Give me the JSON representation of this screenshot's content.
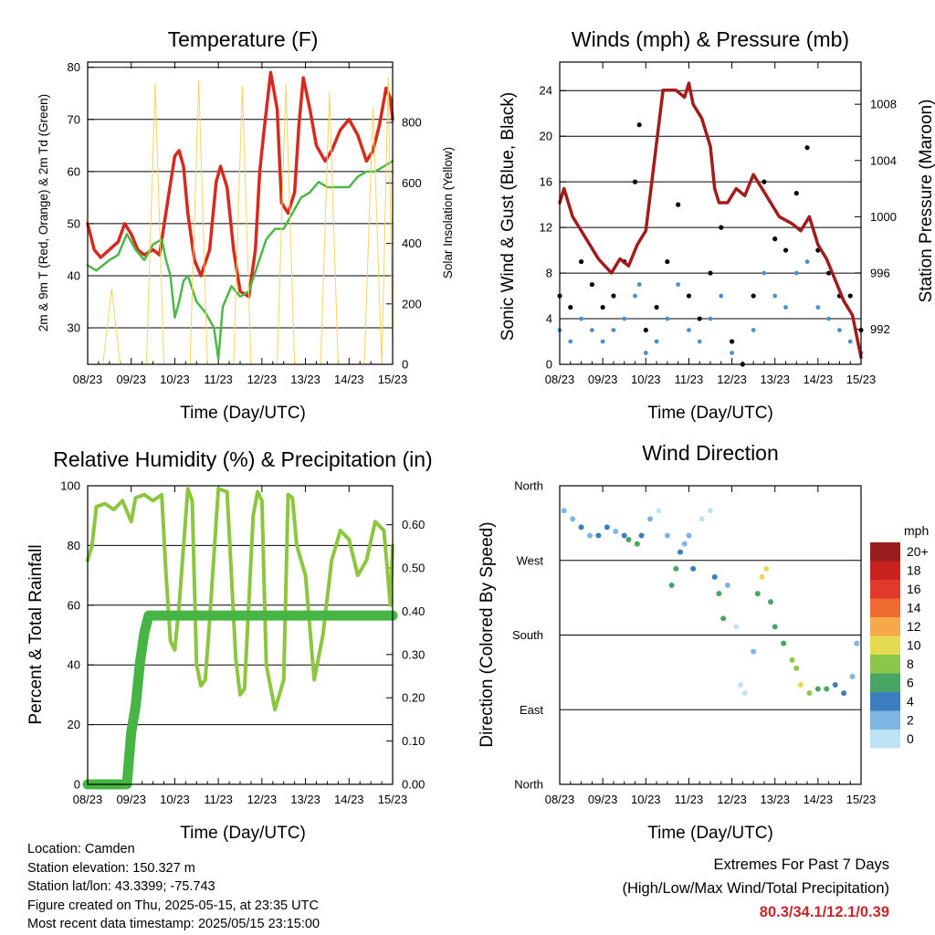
{
  "chart_data": [
    {
      "id": "temperature",
      "type": "line",
      "title": "Temperature (F)",
      "xlabel": "Time (Day/UTC)",
      "ylabel": "2m & 9m T (Red, Orange) & 2m Td (Green)",
      "y2label": "Solar Insolation (Yellow)",
      "x_ticks": [
        "08/23",
        "09/23",
        "10/23",
        "11/23",
        "12/23",
        "13/23",
        "14/23",
        "15/23"
      ],
      "ylim": [
        23,
        81
      ],
      "y_ticks": [
        30,
        40,
        50,
        60,
        70,
        80
      ],
      "y2lim": [
        0,
        1000
      ],
      "y2_ticks": [
        0,
        200,
        400,
        600,
        800
      ],
      "grid_y": [
        30,
        40,
        50,
        60,
        70,
        80
      ],
      "series": [
        {
          "name": "2m T",
          "color": "#d62a1f",
          "x": [
            0,
            0.15,
            0.3,
            0.5,
            0.7,
            0.85,
            1.0,
            1.15,
            1.3,
            1.5,
            1.65,
            1.85,
            2.0,
            2.1,
            2.2,
            2.3,
            2.45,
            2.6,
            2.8,
            2.95,
            3.05,
            3.2,
            3.35,
            3.5,
            3.7,
            3.85,
            3.95,
            4.05,
            4.2,
            4.35,
            4.45,
            4.6,
            4.75,
            4.85,
            4.95,
            5.1,
            5.25,
            5.45,
            5.6,
            5.8,
            6.0,
            6.2,
            6.4,
            6.55,
            6.7,
            6.85,
            6.95,
            7.0
          ],
          "y": [
            50,
            45,
            43.5,
            45,
            46.5,
            50,
            48,
            45,
            44,
            45,
            44,
            55,
            63,
            64,
            61,
            52,
            43,
            40,
            45,
            58,
            61,
            57,
            45,
            37,
            36,
            45,
            60,
            68,
            79,
            72,
            54,
            52,
            56,
            69,
            78,
            72,
            65,
            62,
            64,
            68,
            70,
            67,
            62,
            64,
            69,
            76,
            74,
            70
          ]
        },
        {
          "name": "2m Td",
          "color": "#4cb848",
          "x": [
            0,
            0.2,
            0.5,
            0.7,
            0.9,
            1.1,
            1.3,
            1.5,
            1.7,
            1.8,
            1.9,
            2.0,
            2.1,
            2.2,
            2.3,
            2.5,
            2.7,
            2.9,
            3.0,
            3.1,
            3.3,
            3.5,
            3.7,
            3.9,
            4.1,
            4.3,
            4.5,
            4.7,
            4.9,
            5.1,
            5.3,
            5.5,
            5.8,
            6.0,
            6.2,
            6.4,
            6.6,
            6.8,
            7.0
          ],
          "y": [
            42,
            41,
            43,
            44,
            48,
            45,
            43,
            46,
            47,
            43,
            40,
            32,
            35,
            39,
            40,
            35,
            33,
            30,
            24,
            34,
            38,
            36,
            37,
            42,
            47,
            49,
            49,
            52,
            55,
            56,
            58,
            57,
            57,
            57,
            59,
            60,
            60,
            61,
            62
          ]
        },
        {
          "name": "Solar Insolation",
          "color": "#f5d45a",
          "axis": "y2",
          "x": [
            0,
            0.35,
            0.55,
            0.75,
            0.95,
            1.35,
            1.55,
            1.75,
            1.95,
            2.35,
            2.55,
            2.75,
            2.95,
            3.35,
            3.55,
            3.75,
            3.95,
            4.35,
            4.55,
            4.75,
            4.95,
            5.35,
            5.55,
            5.75,
            5.95,
            6.35,
            6.55,
            6.75,
            6.9,
            7.0
          ],
          "y": [
            0,
            0,
            250,
            0,
            0,
            0,
            930,
            0,
            0,
            0,
            940,
            0,
            0,
            0,
            920,
            0,
            0,
            0,
            930,
            0,
            0,
            0,
            900,
            0,
            0,
            0,
            850,
            0,
            950,
            50
          ]
        }
      ]
    },
    {
      "id": "winds",
      "type": "scatter",
      "title": "Winds (mph) & Pressure (mb)",
      "xlabel": "Time (Day/UTC)",
      "ylabel": "Sonic Wind & Gust (Blue, Black)",
      "y2label": "Station Pressure (Maroon)",
      "x_ticks": [
        "08/23",
        "09/23",
        "10/23",
        "11/23",
        "12/23",
        "13/23",
        "14/23",
        "15/23"
      ],
      "ylim": [
        0,
        26.5
      ],
      "y_ticks": [
        0,
        4,
        8,
        12,
        16,
        20,
        24
      ],
      "y2lim": [
        989.5,
        1011
      ],
      "y2_ticks": [
        992,
        996,
        1000,
        1004,
        1008
      ],
      "series": [
        {
          "name": "Sonic Wind",
          "color": "#4a90cf",
          "x": [
            0,
            0.25,
            0.5,
            0.75,
            1.0,
            1.25,
            1.5,
            1.75,
            1.85,
            2.0,
            2.25,
            2.5,
            2.75,
            3.0,
            3.25,
            3.5,
            3.75,
            4.0,
            4.25,
            4.5,
            4.75,
            5.0,
            5.25,
            5.5,
            5.75,
            6.0,
            6.25,
            6.5,
            6.75,
            7.0
          ],
          "y": [
            3,
            2,
            4,
            3,
            2,
            3,
            4,
            6,
            7,
            1,
            2,
            4,
            7,
            3,
            2,
            4,
            6,
            1,
            0,
            3,
            8,
            6,
            5,
            8,
            9,
            5,
            4,
            3,
            2,
            1
          ]
        },
        {
          "name": "Gust",
          "color": "#000000",
          "x": [
            0,
            0.25,
            0.5,
            0.75,
            1.0,
            1.25,
            1.5,
            1.75,
            1.85,
            2.0,
            2.25,
            2.5,
            2.75,
            3.0,
            3.25,
            3.5,
            3.75,
            4.0,
            4.25,
            4.5,
            4.75,
            5.0,
            5.25,
            5.5,
            5.75,
            6.0,
            6.25,
            6.5,
            6.75,
            7.0
          ],
          "y": [
            6,
            5,
            9,
            7,
            5,
            6,
            9,
            16,
            21,
            3,
            5,
            9,
            14,
            6,
            4,
            8,
            12,
            2,
            0,
            6,
            16,
            11,
            10,
            15,
            19,
            10,
            8,
            6,
            6,
            3
          ]
        },
        {
          "name": "Station Pressure",
          "color": "#a11c1c",
          "axis": "y2",
          "x": [
            0,
            0.1,
            0.3,
            0.6,
            0.9,
            1.2,
            1.4,
            1.6,
            1.8,
            2.0,
            2.2,
            2.4,
            2.7,
            2.9,
            3.0,
            3.1,
            3.3,
            3.5,
            3.6,
            3.7,
            3.9,
            4.1,
            4.3,
            4.5,
            4.7,
            4.9,
            5.1,
            5.4,
            5.6,
            5.8,
            6.0,
            6.2,
            6.4,
            6.6,
            6.8,
            7.0
          ],
          "y": [
            1001,
            1002,
            1000,
            998.5,
            997,
            996,
            997,
            996.5,
            998,
            999,
            1004,
            1009,
            1009,
            1008.5,
            1009.5,
            1008,
            1007,
            1005,
            1002,
            1001,
            1001,
            1002,
            1001.5,
            1003,
            1002,
            1001,
            1000,
            999.5,
            999,
            1000,
            998,
            997,
            995.5,
            994,
            993,
            990
          ]
        }
      ]
    },
    {
      "id": "humidity",
      "type": "line",
      "title": "Relative Humidity (%) & Precipitation (in)",
      "xlabel": "Time (Day/UTC)",
      "ylabel": "Percent & Total Rainfall",
      "x_ticks": [
        "08/23",
        "09/23",
        "10/23",
        "11/23",
        "12/23",
        "13/23",
        "14/23",
        "15/23"
      ],
      "ylim": [
        0,
        100
      ],
      "y_ticks": [
        0,
        20,
        40,
        60,
        80,
        100
      ],
      "y2lim": [
        0,
        0.69
      ],
      "y2_ticks": [
        0.0,
        0.1,
        0.2,
        0.3,
        0.4,
        0.5,
        0.6
      ],
      "series": [
        {
          "name": "Relative Humidity",
          "color": "#8cc63f",
          "x": [
            0,
            0.1,
            0.2,
            0.4,
            0.6,
            0.8,
            1.0,
            1.1,
            1.3,
            1.5,
            1.7,
            1.8,
            1.9,
            2.0,
            2.1,
            2.3,
            2.4,
            2.5,
            2.6,
            2.7,
            2.8,
            3.0,
            3.2,
            3.4,
            3.5,
            3.6,
            3.8,
            3.9,
            4.0,
            4.1,
            4.3,
            4.5,
            4.6,
            4.7,
            4.8,
            5.0,
            5.2,
            5.4,
            5.6,
            5.8,
            6.0,
            6.2,
            6.4,
            6.6,
            6.8,
            6.95,
            7.0
          ],
          "y": [
            75,
            80,
            93,
            94,
            92,
            95,
            88,
            96,
            97,
            95,
            97,
            70,
            48,
            45,
            60,
            99,
            95,
            40,
            33,
            35,
            55,
            99,
            98,
            42,
            30,
            32,
            90,
            98,
            95,
            40,
            25,
            35,
            97,
            96,
            80,
            70,
            35,
            50,
            75,
            85,
            82,
            70,
            75,
            88,
            85,
            60,
            80
          ]
        },
        {
          "name": "Total Rainfall",
          "color": "#46b544",
          "axis": "y2",
          "x": [
            0,
            0.5,
            0.9,
            1.0,
            1.1,
            1.2,
            1.3,
            1.4,
            1.5,
            2.0,
            3.0,
            4.0,
            5.0,
            6.0,
            7.0
          ],
          "y": [
            0,
            0,
            0,
            0.12,
            0.18,
            0.28,
            0.35,
            0.39,
            0.39,
            0.39,
            0.39,
            0.39,
            0.39,
            0.39,
            0.39
          ]
        }
      ]
    },
    {
      "id": "winddir",
      "type": "scatter",
      "title": "Wind Direction",
      "xlabel": "Time (Day/UTC)",
      "ylabel": "Direction (Colored By Speed)",
      "x_ticks": [
        "08/23",
        "09/23",
        "10/23",
        "11/23",
        "12/23",
        "13/23",
        "14/23",
        "15/23"
      ],
      "y_ticks": [
        "North",
        "West",
        "South",
        "East",
        "North"
      ],
      "colorbar": {
        "title": "mph",
        "labels": [
          "20+",
          "18",
          "16",
          "14",
          "12",
          "10",
          "8",
          "6",
          "4",
          "2",
          "0"
        ],
        "colors": [
          "#9b1c1c",
          "#c7221f",
          "#e03a2c",
          "#ee6a2e",
          "#f7a848",
          "#e4db52",
          "#8dc74a",
          "#48a565",
          "#3b7fc0",
          "#7db6e2",
          "#bfe3f5"
        ]
      },
      "series": [
        {
          "name": "Wind Direction",
          "x": [
            0.1,
            0.3,
            0.5,
            0.7,
            0.9,
            1.1,
            1.3,
            1.5,
            1.6,
            1.8,
            1.9,
            2.1,
            2.3,
            2.5,
            2.6,
            2.7,
            2.8,
            2.9,
            3.0,
            3.1,
            3.3,
            3.5,
            3.6,
            3.7,
            3.8,
            3.9,
            4.1,
            4.2,
            4.3,
            4.5,
            4.6,
            4.7,
            4.8,
            4.9,
            5.0,
            5.2,
            5.4,
            5.5,
            5.6,
            5.8,
            6.0,
            6.2,
            6.4,
            6.6,
            6.8,
            6.9
          ],
          "y": [
            330,
            320,
            310,
            300,
            300,
            310,
            305,
            300,
            295,
            290,
            300,
            320,
            330,
            300,
            240,
            260,
            280,
            290,
            300,
            260,
            320,
            330,
            250,
            230,
            200,
            240,
            190,
            120,
            110,
            160,
            230,
            250,
            260,
            220,
            190,
            170,
            150,
            140,
            120,
            110,
            115,
            115,
            120,
            110,
            130,
            170
          ],
          "speed": [
            2,
            3,
            4,
            3,
            5,
            4,
            3,
            5,
            7,
            6,
            4,
            2,
            1,
            3,
            6,
            7,
            5,
            3,
            2,
            4,
            1,
            1,
            4,
            6,
            7,
            3,
            1,
            0,
            1,
            3,
            7,
            10,
            11,
            7,
            6,
            6,
            8,
            9,
            10,
            8,
            6,
            7,
            5,
            4,
            3,
            2
          ]
        }
      ]
    }
  ],
  "footer": {
    "location": "Location: Camden",
    "elevation": "Station elevation: 150.327 m",
    "latlon": "Station lat/lon: 43.3399; -75.743",
    "created": "Figure created on Thu, 2025-05-15, at 23:35 UTC",
    "recent": "Most recent data timestamp: 2025/05/15 23:15:00",
    "extremes_title": "Extremes For Past 7 Days",
    "extremes_sub": "(High/Low/Max Wind/Total Precipitation)",
    "extremes_values": "80.3/34.1/12.1/0.39"
  }
}
